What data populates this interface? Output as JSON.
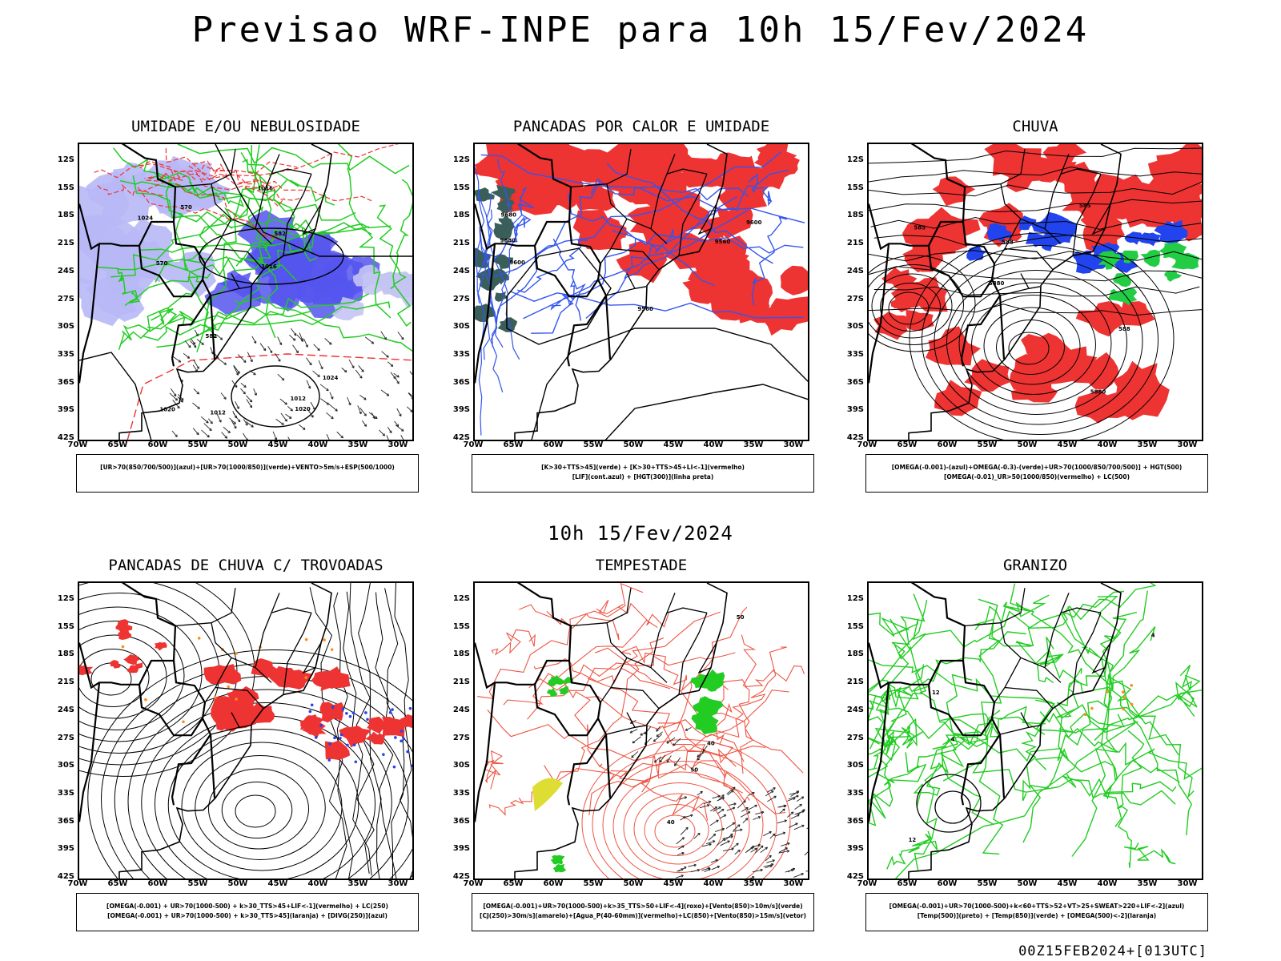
{
  "title": "Previsao WRF-INPE  para 10h 15/Fev/2024",
  "mid_title": "10h 15/Fev/2024",
  "footer": "00Z15FEB2024+[013UTC]",
  "lat_labels": [
    "12S",
    "15S",
    "18S",
    "21S",
    "24S",
    "27S",
    "30S",
    "33S",
    "36S",
    "39S",
    "42S"
  ],
  "lon_labels": [
    "70W",
    "65W",
    "60W",
    "55W",
    "50W",
    "45W",
    "40W",
    "35W",
    "30W"
  ],
  "colors": {
    "blue": "#4444ee",
    "green": "#22cc22",
    "red": "#ee3333",
    "dark": "#000000",
    "orange": "#ff8c1a",
    "yellow": "#dddd33"
  },
  "panels": [
    {
      "title": "UMIDADE E/OU NEBULOSIDADE",
      "legend1": "[UR>70(850/700/500)](azul)+[UR>70(1000/850)](verde)+VENTO>5m/s+ESP(500/1000)",
      "legend2": "",
      "contour_labels": [
        "1016",
        "1020",
        "1024",
        "570",
        "582",
        "1012"
      ]
    },
    {
      "title": "PANCADAS POR CALOR E UMIDADE",
      "legend1": "[K>30+TTS>45](verde) + [K>30+TTS>45+LI<-1](vermelho)",
      "legend2": "[LIF](cont.azul) + [HGT(300)](linha preta)",
      "contour_labels": [
        "9680",
        "9600",
        "9560"
      ]
    },
    {
      "title": "CHUVA",
      "legend1": "[OMEGA(-0.001)-(azul)+OMEGA(-0.3)-(verde)+UR>70(1000/850/700/500)] + HGT(500)",
      "legend2": "[OMEGA(-0.01)_UR>50(1000/850)(vermelho) + LC(500)",
      "contour_labels": [
        "588",
        "585",
        "5880"
      ]
    },
    {
      "title": "PANCADAS DE CHUVA C/ TROVOADAS",
      "legend1": "[OMEGA(-0.001) + UR>70(1000-500) + k>30_TTS>45+LIF<-1](vermelho) + LC(250)",
      "legend2": "[OMEGA(-0.001) + UR>70(1000-500) + k>30_TTS>45](laranja) + [DIVG(250)](azul)",
      "contour_labels": []
    },
    {
      "title": "TEMPESTADE",
      "legend1": "[OMEGA(-0.001)+UR>70(1000-500)+k>35_TTS>50+LIF<-4](roxo)+[Vento(850)>10m/s](verde)",
      "legend2": "[CJ(250)>30m/s](amarelo)+[Agua_P(40-60mm)](vermelho)+LC(850)+[Vento(850)>15m/s](vetor)",
      "contour_labels": [
        "50",
        "40"
      ]
    },
    {
      "title": "GRANIZO",
      "legend1": "[OMEGA(-0.001)+UR>70(1000-500)+k<60+TTS>52+VT>25+SWEAT>220+LIF<-2](azul)",
      "legend2": "[Temp(500)](preto) + [Temp(850)](verde) + [OMEGA(500)<-2](laranja)",
      "contour_labels": [
        "12",
        "4"
      ]
    }
  ]
}
